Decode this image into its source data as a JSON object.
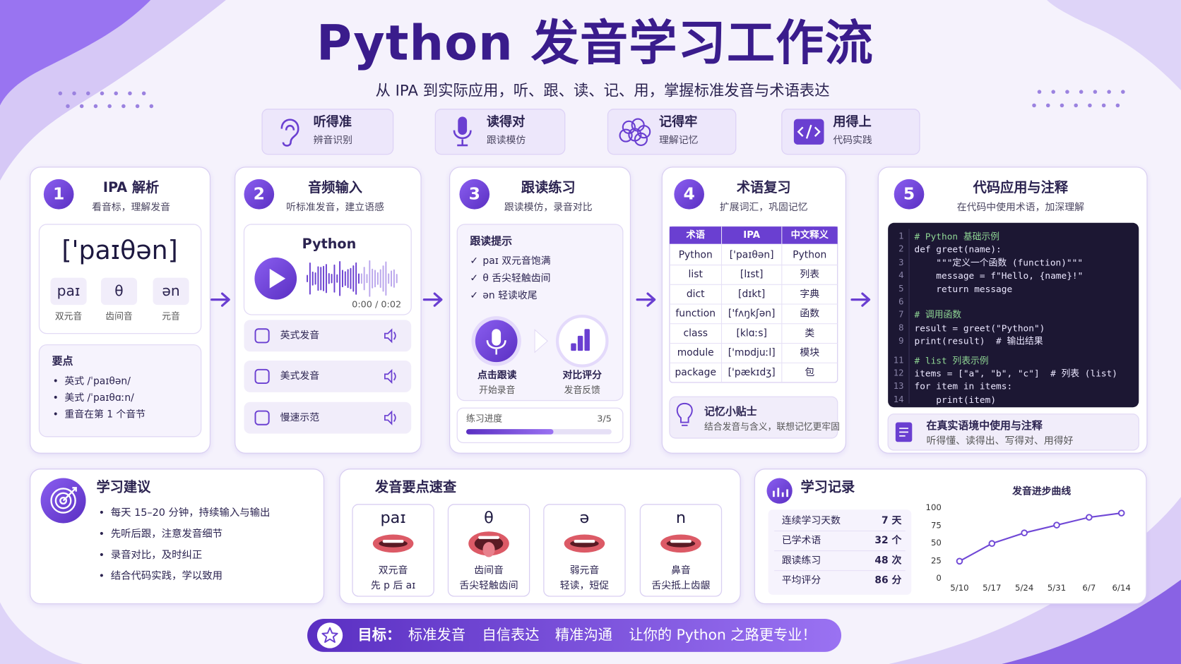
{
  "header": {
    "title": "Python 发音学习工作流",
    "subtitle": "从 IPA 到实际应用，听、跟、读、记、用，掌握标准发音与术语表达"
  },
  "goals": [
    {
      "title": "听得准",
      "subtitle": "辨音识别"
    },
    {
      "title": "读得对",
      "subtitle": "跟读模仿"
    },
    {
      "title": "记得牢",
      "subtitle": "理解记忆"
    },
    {
      "title": "用得上",
      "subtitle": "代码实践"
    }
  ],
  "steps": [
    {
      "number": "1",
      "title": "IPA 解析",
      "subtitle": "看音标，理解发音",
      "ipa": "['paɪθən]",
      "parts": [
        {
          "sound": "paɪ",
          "label": "双元音"
        },
        {
          "sound": "θ",
          "label": "齿间音"
        },
        {
          "sound": "ən",
          "label": "元音"
        }
      ],
      "notes_title": "要点",
      "notes": [
        "英式 /ˈpaɪθən/",
        "美式 /ˈpaɪθɑːn/",
        "重音在第 1 个音节"
      ]
    },
    {
      "number": "2",
      "title": "音频输入",
      "subtitle": "听标准发音，建立语感",
      "audio_word": "Python",
      "time": "0:00 / 0:02",
      "options": [
        "英式发音",
        "美式发音",
        "慢速示范"
      ]
    },
    {
      "number": "3",
      "title": "跟读练习",
      "subtitle": "跟读模仿，录音对比",
      "tips_title": "跟读提示",
      "tips": [
        "paɪ 双元音饱满",
        "θ 舌尖轻触齿间",
        "ən 轻读收尾"
      ],
      "actions": [
        {
          "title": "点击跟读",
          "subtitle": "开始录音"
        },
        {
          "title": "对比评分",
          "subtitle": "发音反馈"
        }
      ],
      "progress": {
        "label": "练习进度",
        "value": "3/5"
      }
    },
    {
      "number": "4",
      "title": "术语复习",
      "subtitle": "扩展词汇，巩固记忆",
      "table": {
        "header": [
          "术语",
          "IPA",
          "中文释义"
        ],
        "rows": [
          [
            "Python",
            "['paɪθən]",
            "Python"
          ],
          [
            "list",
            "[lɪst]",
            "列表"
          ],
          [
            "dict",
            "[dɪkt]",
            "字典"
          ],
          [
            "function",
            "['fʌŋkʃən]",
            "函数"
          ],
          [
            "class",
            "[klɑːs]",
            "类"
          ],
          [
            "module",
            "['mɒdjuːl]",
            "模块"
          ],
          [
            "package",
            "['pækɪdʒ]",
            "包"
          ]
        ]
      },
      "tip": {
        "title": "记忆小贴士",
        "text": "结合发音与含义，联想记忆更牢固"
      }
    },
    {
      "number": "5",
      "title": "代码应用与注释",
      "subtitle": "在代码中使用术语，加深理解",
      "code": [
        {
          "n": "1",
          "text": "# Python 基础示例"
        },
        {
          "n": "2",
          "text": "def greet(name):"
        },
        {
          "n": "3",
          "text": "    \"\"\"定义一个函数 (function)\"\"\""
        },
        {
          "n": "4",
          "text": "    message = f\"Hello, {name}!\""
        },
        {
          "n": "5",
          "text": "    return message"
        },
        {
          "n": "6",
          "text": ""
        },
        {
          "n": "7",
          "text": "# 调用函数"
        },
        {
          "n": "8",
          "text": "result = greet(\"Python\")"
        },
        {
          "n": "9",
          "text": "print(result)  # 输出结果"
        },
        {
          "n": "11",
          "text": "# list 列表示例"
        },
        {
          "n": "12",
          "text": "items = [\"a\", \"b\", \"c\"]  # 列表 (list)"
        },
        {
          "n": "13",
          "text": "for item in items:"
        },
        {
          "n": "14",
          "text": "    print(item)"
        }
      ],
      "note": {
        "title": "在真实语境中使用与注释",
        "text": "听得懂、读得出、写得对、用得好"
      }
    }
  ],
  "advice": {
    "title": "学习建议",
    "items": [
      "每天 15–20 分钟，持续输入与输出",
      "先听后跟，注意发音细节",
      "录音对比，及时纠正",
      "结合代码实践，学以致用"
    ]
  },
  "quick_ref": {
    "title": "发音要点速查",
    "cards": [
      {
        "symbol": "paɪ",
        "name": "双元音",
        "hint": "先 p 后 aɪ"
      },
      {
        "symbol": "θ",
        "name": "齿间音",
        "hint": "舌尖轻触齿间"
      },
      {
        "symbol": "ə",
        "name": "弱元音",
        "hint": "轻读，短促"
      },
      {
        "symbol": "n",
        "name": "鼻音",
        "hint": "舌尖抵上齿龈"
      }
    ]
  },
  "record": {
    "title": "学习记录",
    "stats": [
      {
        "label": "连续学习天数",
        "value": "7 天"
      },
      {
        "label": "已学术语",
        "value": "32 个"
      },
      {
        "label": "跟读练习",
        "value": "48 次"
      },
      {
        "label": "平均评分",
        "value": "86 分"
      }
    ],
    "chart": {
      "type": "line",
      "title": "发音进步曲线",
      "categories": [
        "5/10",
        "5/17",
        "5/24",
        "5/31",
        "6/7",
        "6/14"
      ],
      "values": [
        24,
        49,
        64,
        75,
        86,
        92
      ],
      "ylim": [
        0,
        100
      ],
      "yticks": [
        0,
        25,
        50,
        75,
        100
      ],
      "color": "#7048d6"
    }
  },
  "footer": {
    "label": "目标：",
    "items": [
      "标准发音",
      "自信表达",
      "精准沟通",
      "让你的 Python 之路更专业！"
    ]
  }
}
